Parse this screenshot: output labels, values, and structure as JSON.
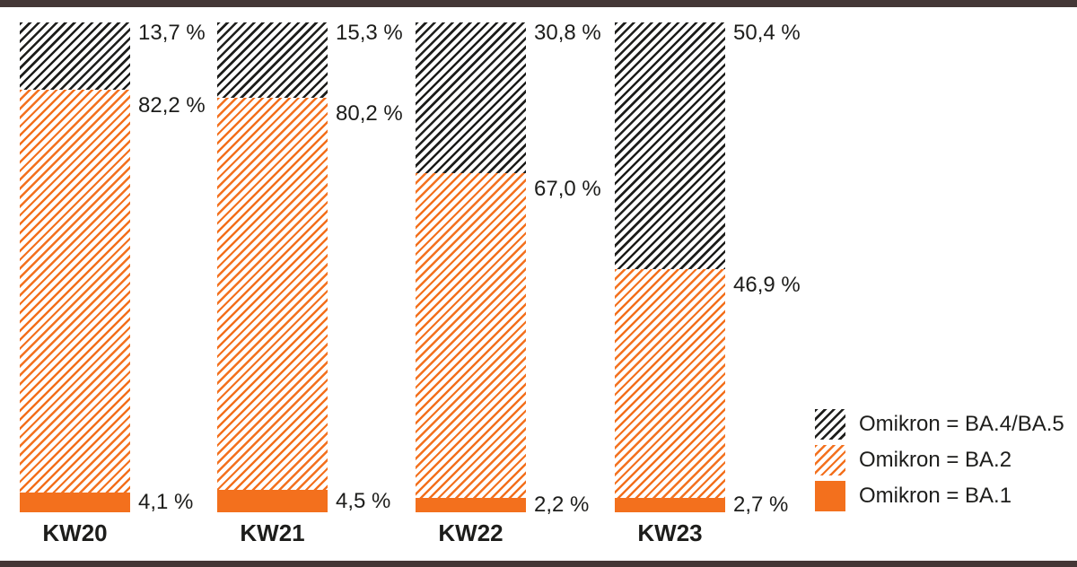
{
  "colors": {
    "accent_orange": "#f3701d",
    "hatch_black": "#1d1d1b",
    "text": "#1d1d1b",
    "background": "#ffffff",
    "window_edge": "#443736"
  },
  "chart_data": {
    "type": "bar",
    "variant": "stacked-100-percent",
    "orientation": "vertical",
    "categories": [
      "KW20",
      "KW21",
      "KW22",
      "KW23"
    ],
    "series": [
      {
        "name": "Omikron = BA.4/BA.5",
        "pattern": "black-diagonal-hatch",
        "values": [
          13.7,
          15.3,
          30.8,
          50.4
        ],
        "value_labels": [
          "13,7 %",
          "15,3 %",
          "30,8 %",
          "50,4 %"
        ]
      },
      {
        "name": "Omikron = BA.2",
        "pattern": "orange-diagonal-hatch",
        "values": [
          82.2,
          80.2,
          67.0,
          46.9
        ],
        "value_labels": [
          "82,2 %",
          "80,2 %",
          "67,0 %",
          "46,9 %"
        ]
      },
      {
        "name": "Omikron = BA.1",
        "pattern": "orange-solid",
        "values": [
          4.1,
          4.5,
          2.2,
          2.7
        ],
        "value_labels": [
          "4,1 %",
          "4,5 %",
          "2,2 %",
          "2,7 %"
        ]
      }
    ],
    "unit": "percent",
    "ylim": [
      0,
      100
    ],
    "grid": false,
    "legend_position": "bottom-right",
    "title": "",
    "xlabel": "",
    "ylabel": ""
  },
  "legend": {
    "items": [
      {
        "label": "Omikron = BA.4/BA.5",
        "swatch": "hatch-black"
      },
      {
        "label": "Omikron = BA.2",
        "swatch": "hatch-orange"
      },
      {
        "label": "Omikron = BA.1",
        "swatch": "solid-orange"
      }
    ]
  }
}
